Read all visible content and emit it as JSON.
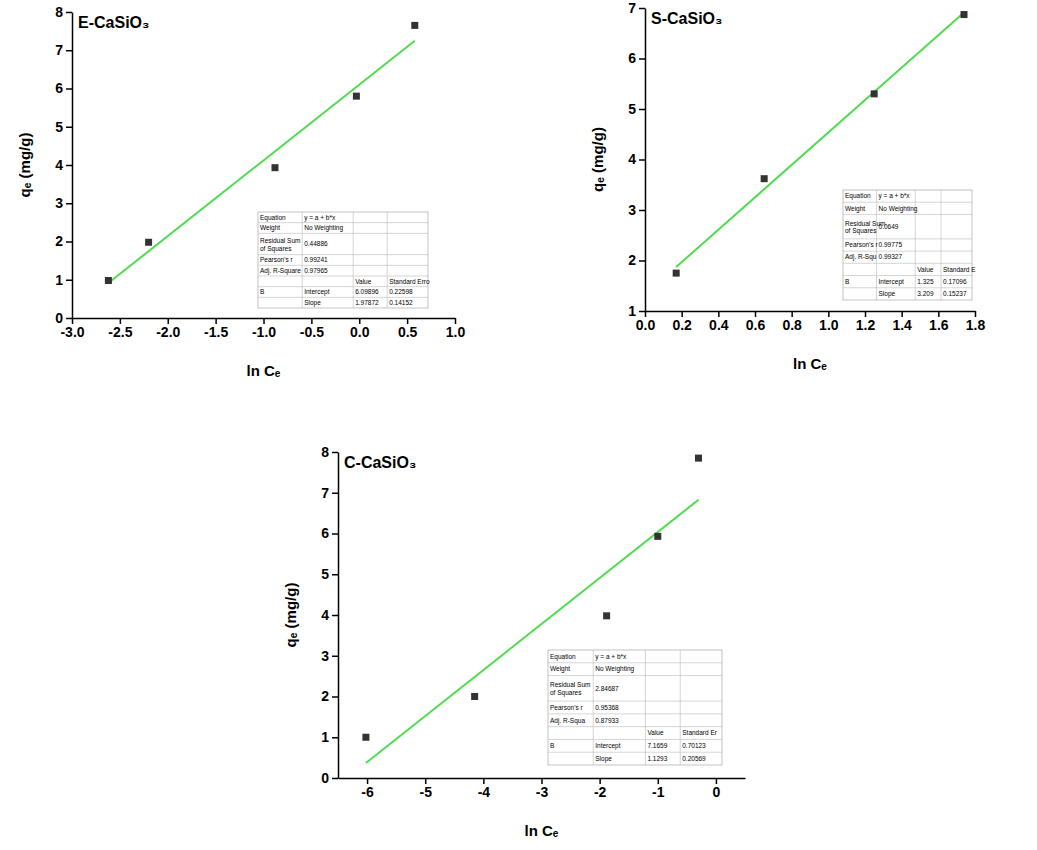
{
  "chart_data": [
    {
      "type": "scatter",
      "title": "E-CaSiO₃",
      "x_label": "ln Cₑ",
      "y_label": "qₑ (mg/g)",
      "x": [
        -2.62,
        -2.2,
        -0.88,
        -0.03,
        0.58
      ],
      "values": [
        0.98,
        1.98,
        3.93,
        5.8,
        7.65
      ],
      "color": "#333333",
      "marker": "square",
      "grid": false,
      "xlim": [
        -3,
        1
      ],
      "ylim": [
        0,
        8
      ],
      "xticks": [
        {
          "value": -3,
          "label": "-3.0"
        },
        -2.5,
        {
          "value": -2,
          "label": "-2.0"
        },
        -1.5,
        {
          "value": -1,
          "label": "-1.0"
        },
        -0.5,
        {
          "value": 0,
          "label": "0.0"
        },
        0.5,
        {
          "value": 1,
          "label": "1.0"
        }
      ],
      "yticks": [
        0,
        1,
        2,
        3,
        4,
        5,
        6,
        7,
        8
      ],
      "fit": {
        "intercept": 6.09896,
        "slope": 1.97872,
        "color": "#4fdc4f",
        "line_style": "solid"
      },
      "stats_table": {
        "rows": [
          [
            "Equation",
            "y = a + b*x",
            null,
            null
          ],
          [
            "Weight",
            "No Weighting",
            null,
            null
          ],
          [
            "Residual Sum of Squares",
            "0.44886",
            null,
            null
          ],
          [
            "Pearson's r",
            "0.99241",
            null,
            null
          ],
          [
            "Adj. R-Square",
            "0.97965",
            null,
            null
          ],
          [
            null,
            null,
            "Value",
            "Standard Erro"
          ],
          [
            "B",
            "Intercept",
            "6.09896",
            "0.22598"
          ],
          [
            null,
            "Slope",
            "1.97872",
            "0.14152"
          ]
        ]
      }
    },
    {
      "type": "scatter",
      "title": "S-CaSiO₃",
      "x_label": "ln Cₑ",
      "y_label": "qₑ (mg/g)",
      "x": [
        0.17,
        0.65,
        1.25,
        1.74
      ],
      "values": [
        1.75,
        3.62,
        5.3,
        6.87
      ],
      "color": "#333333",
      "marker": "square",
      "grid": false,
      "xlim": [
        0,
        1.8
      ],
      "ylim": [
        1,
        7
      ],
      "xticks": [
        {
          "value": 0,
          "label": "0.0"
        },
        0.2,
        0.4,
        0.6,
        0.8,
        {
          "value": 1,
          "label": "1.0"
        },
        1.2,
        1.4,
        1.6,
        1.8
      ],
      "yticks": [
        1,
        2,
        3,
        4,
        5,
        6,
        7
      ],
      "fit": {
        "intercept": 1.325,
        "slope": 3.209,
        "color": "#4fdc4f",
        "line_style": "solid"
      },
      "stats_table": {
        "rows": [
          [
            "Equation",
            "y = a + b*x",
            null,
            null
          ],
          [
            "Weight",
            "No Weighting",
            null,
            null
          ],
          [
            "Residual Sum of Squares",
            "0.0649",
            null,
            null
          ],
          [
            "Pearson's r",
            "0.99775",
            null,
            null
          ],
          [
            "Adj. R-Squ",
            "0.99327",
            null,
            null
          ],
          [
            null,
            null,
            "Value",
            "Standard E"
          ],
          [
            "B",
            "Intercept",
            "1.325",
            "0.17096"
          ],
          [
            null,
            "Slope",
            "3.209",
            "0.15237"
          ]
        ]
      }
    },
    {
      "type": "scatter",
      "title": "C-CaSiO₃",
      "x_label": "ln Cₑ",
      "y_label": "qₑ (mg/g)",
      "x": [
        -6.02,
        -4.15,
        -1.88,
        -1.0,
        -0.3
      ],
      "values": [
        1.0,
        2.0,
        3.98,
        5.93,
        7.85
      ],
      "color": "#333333",
      "marker": "square",
      "grid": false,
      "xlim": [
        -6.5,
        0.5
      ],
      "ylim": [
        0,
        8
      ],
      "xticks": [
        -6,
        -5,
        -4,
        -3,
        -2,
        -1,
        0
      ],
      "yticks": [
        0,
        1,
        2,
        3,
        4,
        5,
        6,
        7,
        8
      ],
      "fit": {
        "intercept": 7.1659,
        "slope": 1.1293,
        "color": "#4fdc4f",
        "line_style": "solid"
      },
      "stats_table": {
        "rows": [
          [
            "Equation",
            "y = a + b*x",
            null,
            null
          ],
          [
            "Weight",
            "No Weighting",
            null,
            null
          ],
          [
            "Residual Sum of Squares",
            "2.84687",
            null,
            null
          ],
          [
            "Pearson's r",
            "0.95368",
            null,
            null
          ],
          [
            "Adj. R-Squa",
            "0.87933",
            null,
            null
          ],
          [
            null,
            null,
            "Value",
            "Standard Er"
          ],
          [
            "B",
            "Intercept",
            "7.1659",
            "0.70123"
          ],
          [
            null,
            "Slope",
            "1.1293",
            "0.20569"
          ]
        ]
      }
    }
  ]
}
